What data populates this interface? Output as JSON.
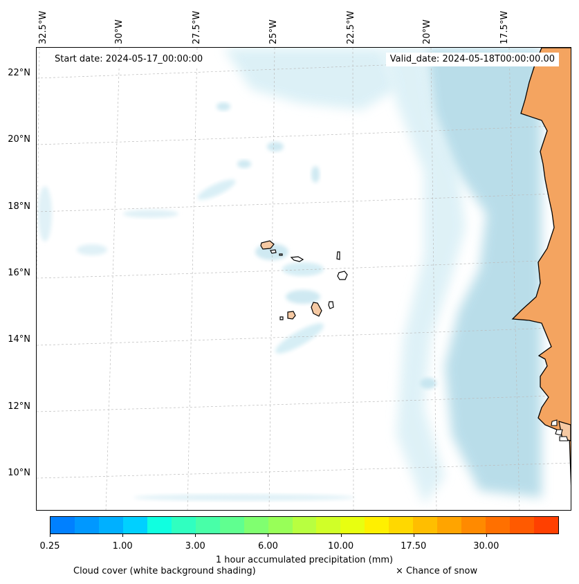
{
  "map": {
    "start_date": "Start date: 2024-05-17_00:00:00",
    "valid_date": "Valid_date: 2024-05-18T00:00:00.00",
    "lon_labels": [
      "32.5°W",
      "30°W",
      "27.5°W",
      "25°W",
      "22.5°W",
      "20°W",
      "17.5°W"
    ],
    "lat_labels": [
      "22°N",
      "20°N",
      "18°N",
      "16°N",
      "14°N",
      "12°N",
      "10°N"
    ],
    "extent": {
      "lon_min": -32.5,
      "lon_max": -15.75,
      "lat_min": 9.0,
      "lat_max": 22.8
    },
    "colors": {
      "land": "#f4a460",
      "cloud": "#add8e6",
      "coast": "#000000",
      "grid": "#bbbbbb"
    }
  },
  "colorbar": {
    "title": "1 hour accumulated precipitation (mm)",
    "tick_labels": [
      "0.25",
      "1.00",
      "3.00",
      "6.00",
      "10.00",
      "17.50",
      "30.00"
    ],
    "colors": [
      "#0080ff",
      "#0098ff",
      "#00b0ff",
      "#00d0ff",
      "#10ffe0",
      "#30ffc0",
      "#48ffa8",
      "#60ff90",
      "#80ff70",
      "#98ff58",
      "#b8ff40",
      "#d0ff28",
      "#e8ff10",
      "#fff000",
      "#ffd800",
      "#ffbe00",
      "#ffa400",
      "#ff8a00",
      "#ff7000",
      "#ff5a00",
      "#ff4000"
    ]
  },
  "legend": {
    "cloud_note": "Cloud cover (white background shading)",
    "snow_note": "× Chance of snow"
  }
}
